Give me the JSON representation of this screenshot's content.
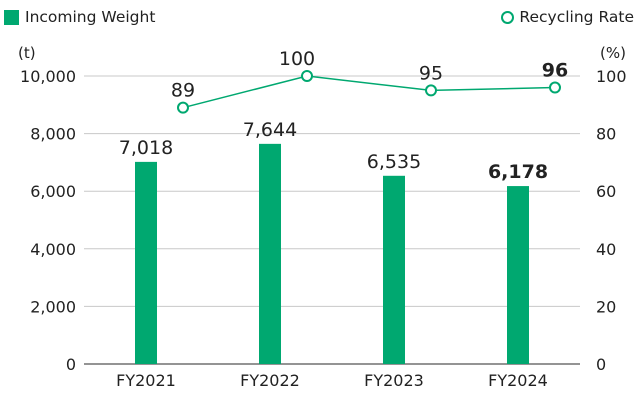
{
  "chart_data": {
    "type": "bar+line",
    "categories": [
      "FY2021",
      "FY2022",
      "FY2023",
      "FY2024"
    ],
    "series": [
      {
        "name": "Incoming Weight",
        "type": "bar",
        "axis": "left",
        "values": [
          7018,
          7644,
          6535,
          6178
        ],
        "labels": [
          "7,018",
          "7,644",
          "6,535",
          "6,178"
        ]
      },
      {
        "name": "Recycling Rate",
        "type": "line",
        "axis": "right",
        "values": [
          89,
          100,
          95,
          96
        ],
        "labels": [
          "89",
          "100",
          "95",
          "96"
        ]
      }
    ],
    "left_axis": {
      "unit": "(t)",
      "range": [
        0,
        10000
      ],
      "ticks": [
        0,
        2000,
        4000,
        6000,
        8000,
        10000
      ],
      "tick_labels": [
        "0",
        "2,000",
        "4,000",
        "6,000",
        "8,000",
        "10,000"
      ]
    },
    "right_axis": {
      "unit": "(%)",
      "range": [
        0,
        100
      ],
      "ticks": [
        0,
        20,
        40,
        60,
        80,
        100
      ],
      "tick_labels": [
        "0",
        "20",
        "40",
        "60",
        "80",
        "100"
      ]
    },
    "grid": "horizontal",
    "legend": "top",
    "colors": {
      "bar": "#00a870",
      "line": "#00a870",
      "grid": "#c8c8c8",
      "axis": "#555555"
    },
    "emphasized_category": "FY2024"
  }
}
